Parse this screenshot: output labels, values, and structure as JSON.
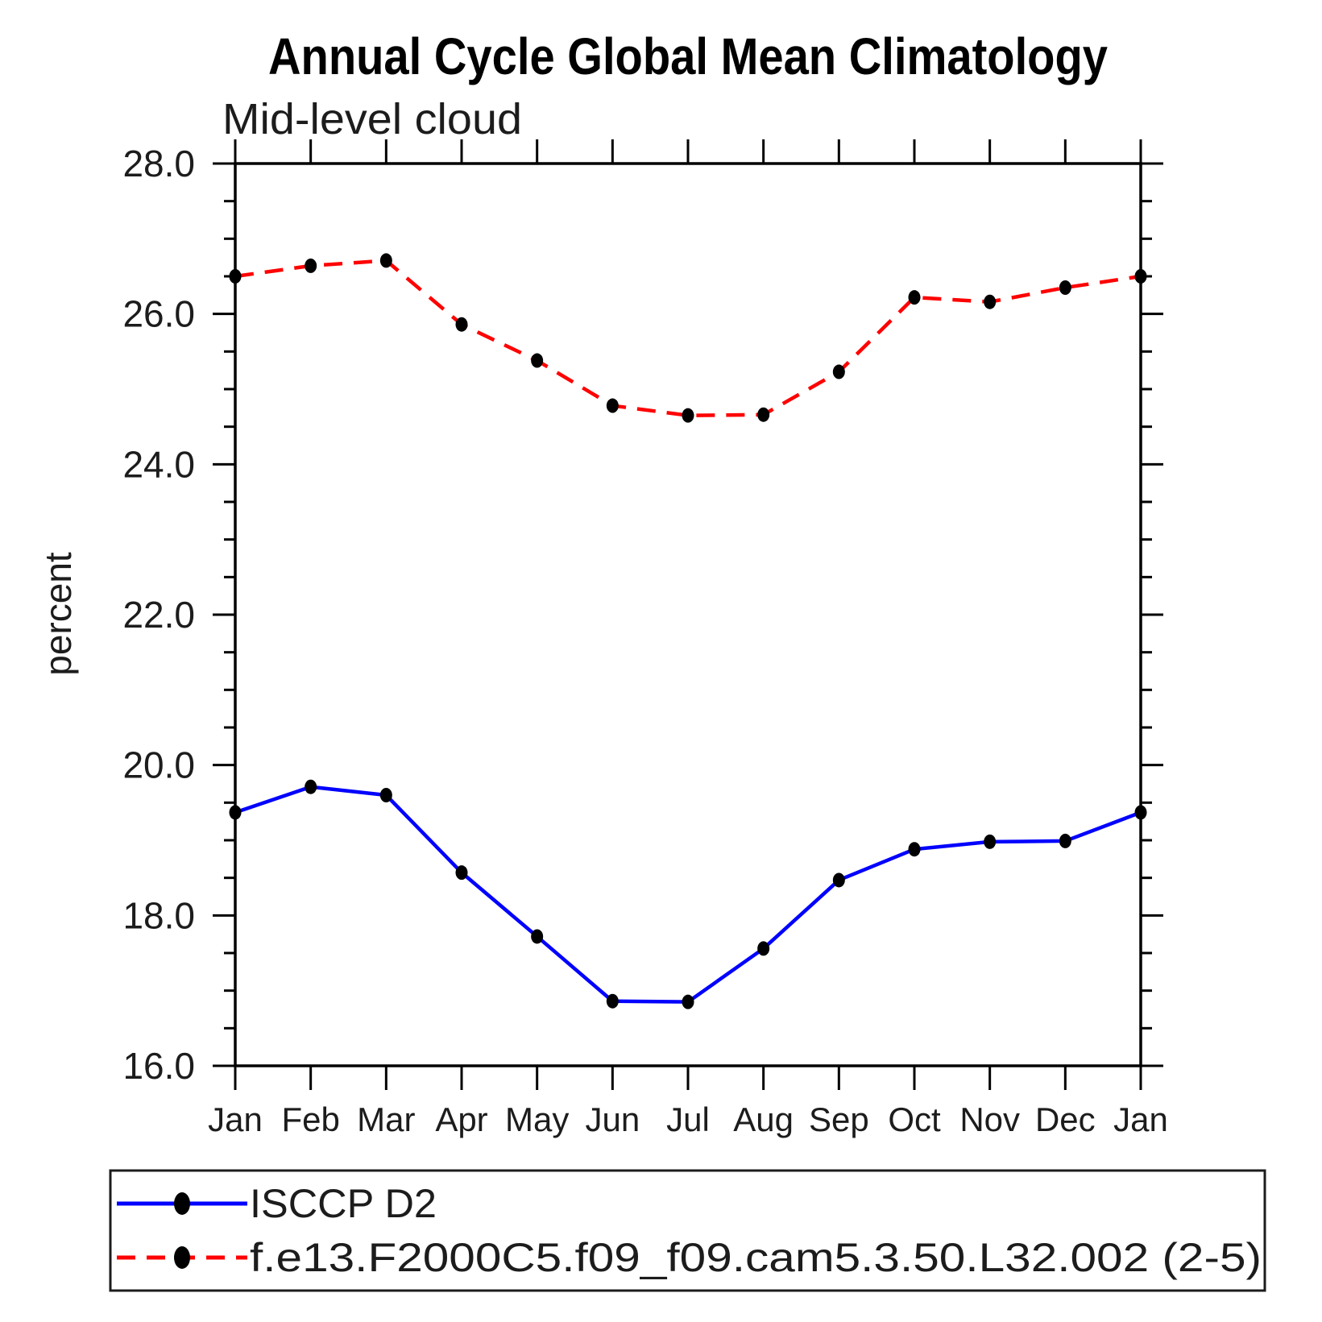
{
  "title": "Annual Cycle Global Mean Climatology",
  "subtitle": "Mid-level cloud",
  "ylabel": "percent",
  "chart_data": {
    "type": "line",
    "title": "Annual Cycle Global Mean Climatology",
    "subtitle": "Mid-level cloud",
    "xlabel": "",
    "ylabel": "percent",
    "ylim": [
      16.0,
      28.0
    ],
    "ytick_step_major": 2.0,
    "ytick_step_minor": 0.5,
    "ytick_labels": [
      "16.0",
      "18.0",
      "20.0",
      "22.0",
      "24.0",
      "26.0",
      "28.0"
    ],
    "categories": [
      "Jan",
      "Feb",
      "Mar",
      "Apr",
      "May",
      "Jun",
      "Jul",
      "Aug",
      "Sep",
      "Oct",
      "Nov",
      "Dec",
      "Jan"
    ],
    "grid": false,
    "legend_position": "bottom",
    "marker": "filled-ellipse",
    "marker_color": "#000000",
    "series": [
      {
        "name": "ISCCP D2",
        "color": "#0000ff",
        "style": "solid",
        "values": [
          19.37,
          19.71,
          19.6,
          18.57,
          17.72,
          16.86,
          16.85,
          17.56,
          18.47,
          18.88,
          18.98,
          18.99,
          19.37
        ]
      },
      {
        "name": "f.e13.F2000C5.f09_f09.cam5.3.50.L32.002 (2-5)",
        "color": "#ff0000",
        "style": "dashed",
        "values": [
          26.5,
          26.64,
          26.71,
          25.86,
          25.38,
          24.78,
          24.65,
          24.66,
          25.23,
          26.22,
          26.16,
          26.35,
          26.5
        ]
      }
    ]
  }
}
